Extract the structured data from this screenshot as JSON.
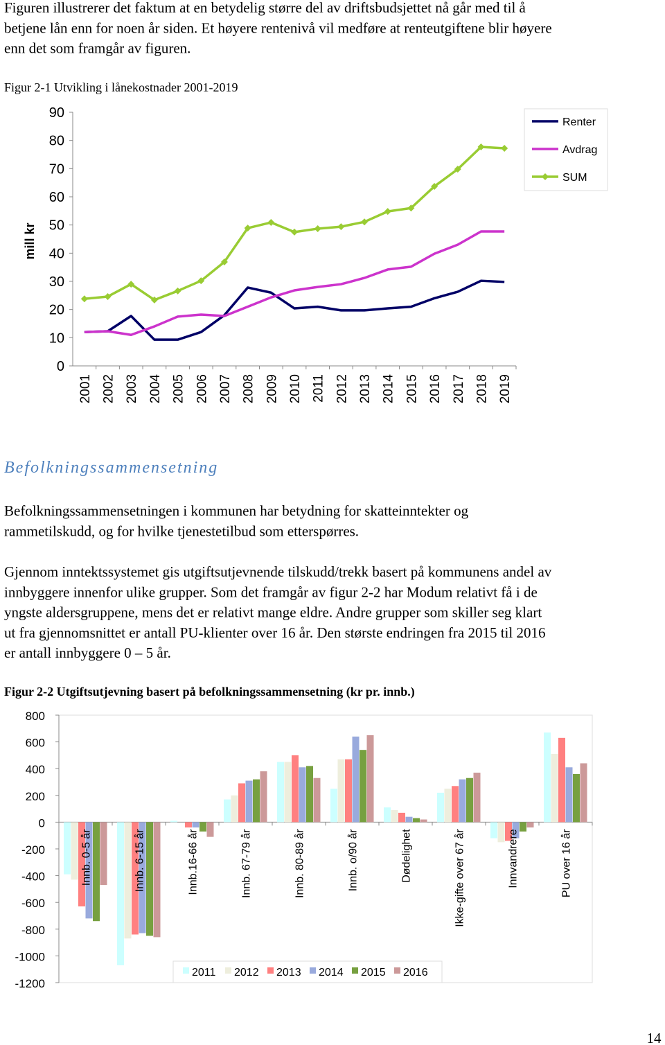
{
  "paragraphs": [
    [
      "Figuren illustrerer det faktum at en betydelig større del av driftsbudsjettet nå går med til å",
      "betjene lån enn for noen år siden. Et høyere rentenivå vil medføre at renteutgiftene blir høyere",
      "enn det som framgår av figuren."
    ],
    [
      "Befolkningssammensetningen i kommunen har betydning for skatteinntekter og",
      "rammetilskudd, og for hvilke tjenestetilbud som etterspørres."
    ],
    [
      "Gjennom inntektssystemet gis utgiftsutjevnende tilskudd/trekk basert på kommunens andel av",
      "innbyggere innenfor ulike grupper. Som det framgår av figur 2-2 har Modum relativt få i de",
      "yngste aldersgruppene, mens det er relativt mange eldre. Andre grupper som skiller seg klart",
      "ut fra gjennomsnittet er antall PU-klienter over 16 år. Den største endringen fra 2015 til 2016",
      "er antall innbyggere 0 – 5 år."
    ]
  ],
  "heading": "Befolkningssammensetning",
  "page_number": "14",
  "chart_data": [
    {
      "type": "line",
      "title": "Figur 2-1 Utvikling i lånekostnader 2001-2019",
      "ylabel": "mill kr",
      "categories": [
        "2001",
        "2002",
        "2003",
        "2004",
        "2005",
        "2006",
        "2007",
        "2008",
        "2009",
        "2010",
        "2011",
        "2012",
        "2013",
        "2014",
        "2015",
        "2016",
        "2017",
        "2018",
        "2019"
      ],
      "ylim": [
        0,
        90
      ],
      "yticks": [
        0,
        10,
        20,
        30,
        40,
        50,
        60,
        70,
        80,
        90
      ],
      "legend": "top-right",
      "series": [
        {
          "name": "Renter",
          "color": "#000066",
          "values": [
            12,
            12.3,
            17.7,
            9.3,
            9.3,
            12,
            18,
            27.8,
            26,
            20.4,
            21,
            19.7,
            19.7,
            20.4,
            21,
            24,
            26.3,
            30.2,
            29.8
          ]
        },
        {
          "name": "Avdrag",
          "color": "#cc33cc",
          "values": [
            12,
            12.3,
            11,
            14,
            17.5,
            18.2,
            17.7,
            21,
            24.3,
            26.8,
            28,
            29,
            31.2,
            34.2,
            35.2,
            39.8,
            43,
            47.7,
            47.7
          ]
        },
        {
          "name": "SUM",
          "color": "#99cc33",
          "marker": "diamond",
          "values": [
            23.8,
            24.6,
            29,
            23.4,
            26.6,
            30.2,
            36.9,
            48.9,
            50.9,
            47.5,
            48.7,
            49.4,
            51.1,
            54.8,
            56,
            63.7,
            69.8,
            77.7,
            77.2
          ]
        }
      ]
    },
    {
      "type": "bar",
      "title": "Figur 2-2 Utgiftsutjevning basert på befolkningssammensetning (kr pr. innb.)",
      "categories": [
        "Innb. 0-5 år",
        "Innb. 6-15 år",
        "Innb.16-66 år",
        "Innb. 67-79 år",
        "Innb. 80-89 år",
        "Innb. o/90 år",
        "Dødelighet",
        "Ikke-gifte over 67 år",
        "Innvandrere",
        "PU over 16 år"
      ],
      "ylim": [
        -1200,
        800
      ],
      "yticks": [
        -1200,
        -1000,
        -800,
        -600,
        -400,
        -200,
        0,
        200,
        400,
        600,
        800
      ],
      "legend": "bottom",
      "series": [
        {
          "name": "2011",
          "color": "#ccffff",
          "values": [
            -390,
            -1070,
            10,
            170,
            450,
            250,
            110,
            220,
            -120,
            670
          ]
        },
        {
          "name": "2012",
          "color": "#eeeedd",
          "values": [
            -430,
            -870,
            0,
            200,
            450,
            470,
            90,
            250,
            -150,
            510
          ]
        },
        {
          "name": "2013",
          "color": "#ff8080",
          "values": [
            -630,
            -840,
            -40,
            290,
            500,
            470,
            70,
            270,
            -140,
            630
          ]
        },
        {
          "name": "2014",
          "color": "#99aadd",
          "values": [
            -720,
            -830,
            -40,
            310,
            410,
            640,
            40,
            320,
            -120,
            410
          ]
        },
        {
          "name": "2015",
          "color": "#77a040",
          "values": [
            -740,
            -850,
            -70,
            320,
            420,
            540,
            30,
            330,
            -70,
            360
          ]
        },
        {
          "name": "2016",
          "color": "#cc9999",
          "values": [
            -470,
            -860,
            -110,
            380,
            330,
            650,
            20,
            370,
            -40,
            440
          ]
        }
      ]
    }
  ]
}
